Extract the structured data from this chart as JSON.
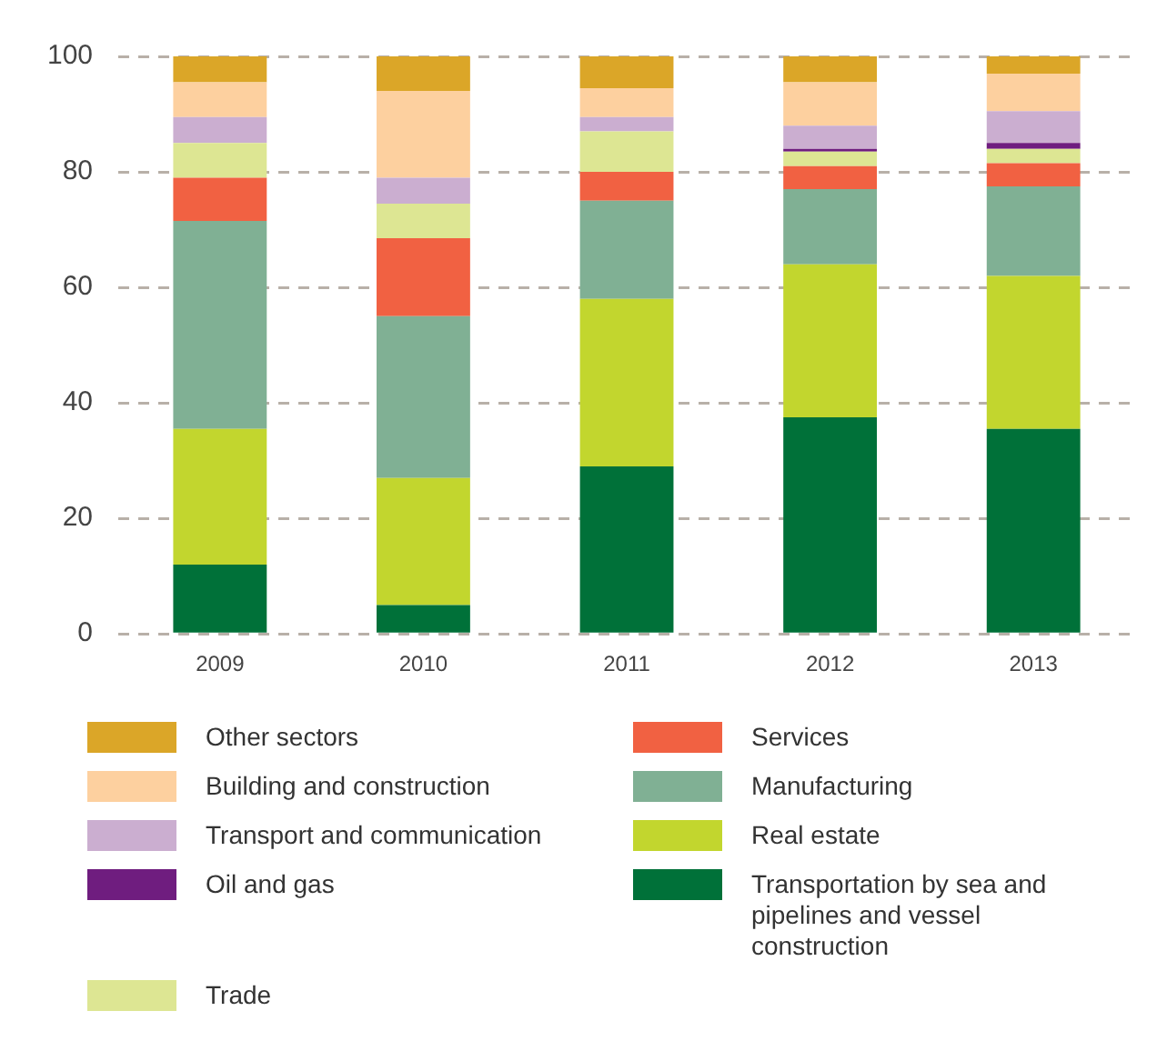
{
  "chart_data": {
    "type": "bar",
    "stacked": true,
    "categories": [
      "2009",
      "2010",
      "2011",
      "2012",
      "2013"
    ],
    "ylim": [
      0,
      100
    ],
    "yticks": [
      0,
      20,
      40,
      60,
      80,
      100
    ],
    "grid": "y",
    "legend": "bottom",
    "series": [
      {
        "name": "Transportation by sea and pipelines and vessel construction",
        "color": "#007139",
        "values": [
          12,
          5,
          29,
          37.5,
          35.5
        ]
      },
      {
        "name": "Real estate",
        "color": "#c2d62e",
        "values": [
          23.5,
          22,
          29,
          26.5,
          26.5
        ]
      },
      {
        "name": "Manufacturing",
        "color": "#80b094",
        "values": [
          36,
          28,
          17,
          13,
          15.5
        ]
      },
      {
        "name": "Services",
        "color": "#f16142",
        "values": [
          7.5,
          13.5,
          5,
          4,
          4
        ]
      },
      {
        "name": "Trade",
        "color": "#dde693",
        "values": [
          6,
          6,
          7,
          2.5,
          2.5
        ]
      },
      {
        "name": "Oil and gas",
        "color": "#6f1d7f",
        "values": [
          0,
          0,
          0,
          0.5,
          1
        ]
      },
      {
        "name": "Transport and communication",
        "color": "#cbaed0",
        "values": [
          4.5,
          4.5,
          2.5,
          4,
          5.5
        ]
      },
      {
        "name": "Building and construction",
        "color": "#fdd09f",
        "values": [
          6,
          15,
          5,
          7.5,
          6.5
        ]
      },
      {
        "name": "Other sectors",
        "color": "#dba628",
        "values": [
          4.5,
          6,
          5.5,
          4.5,
          3
        ]
      }
    ]
  }
}
